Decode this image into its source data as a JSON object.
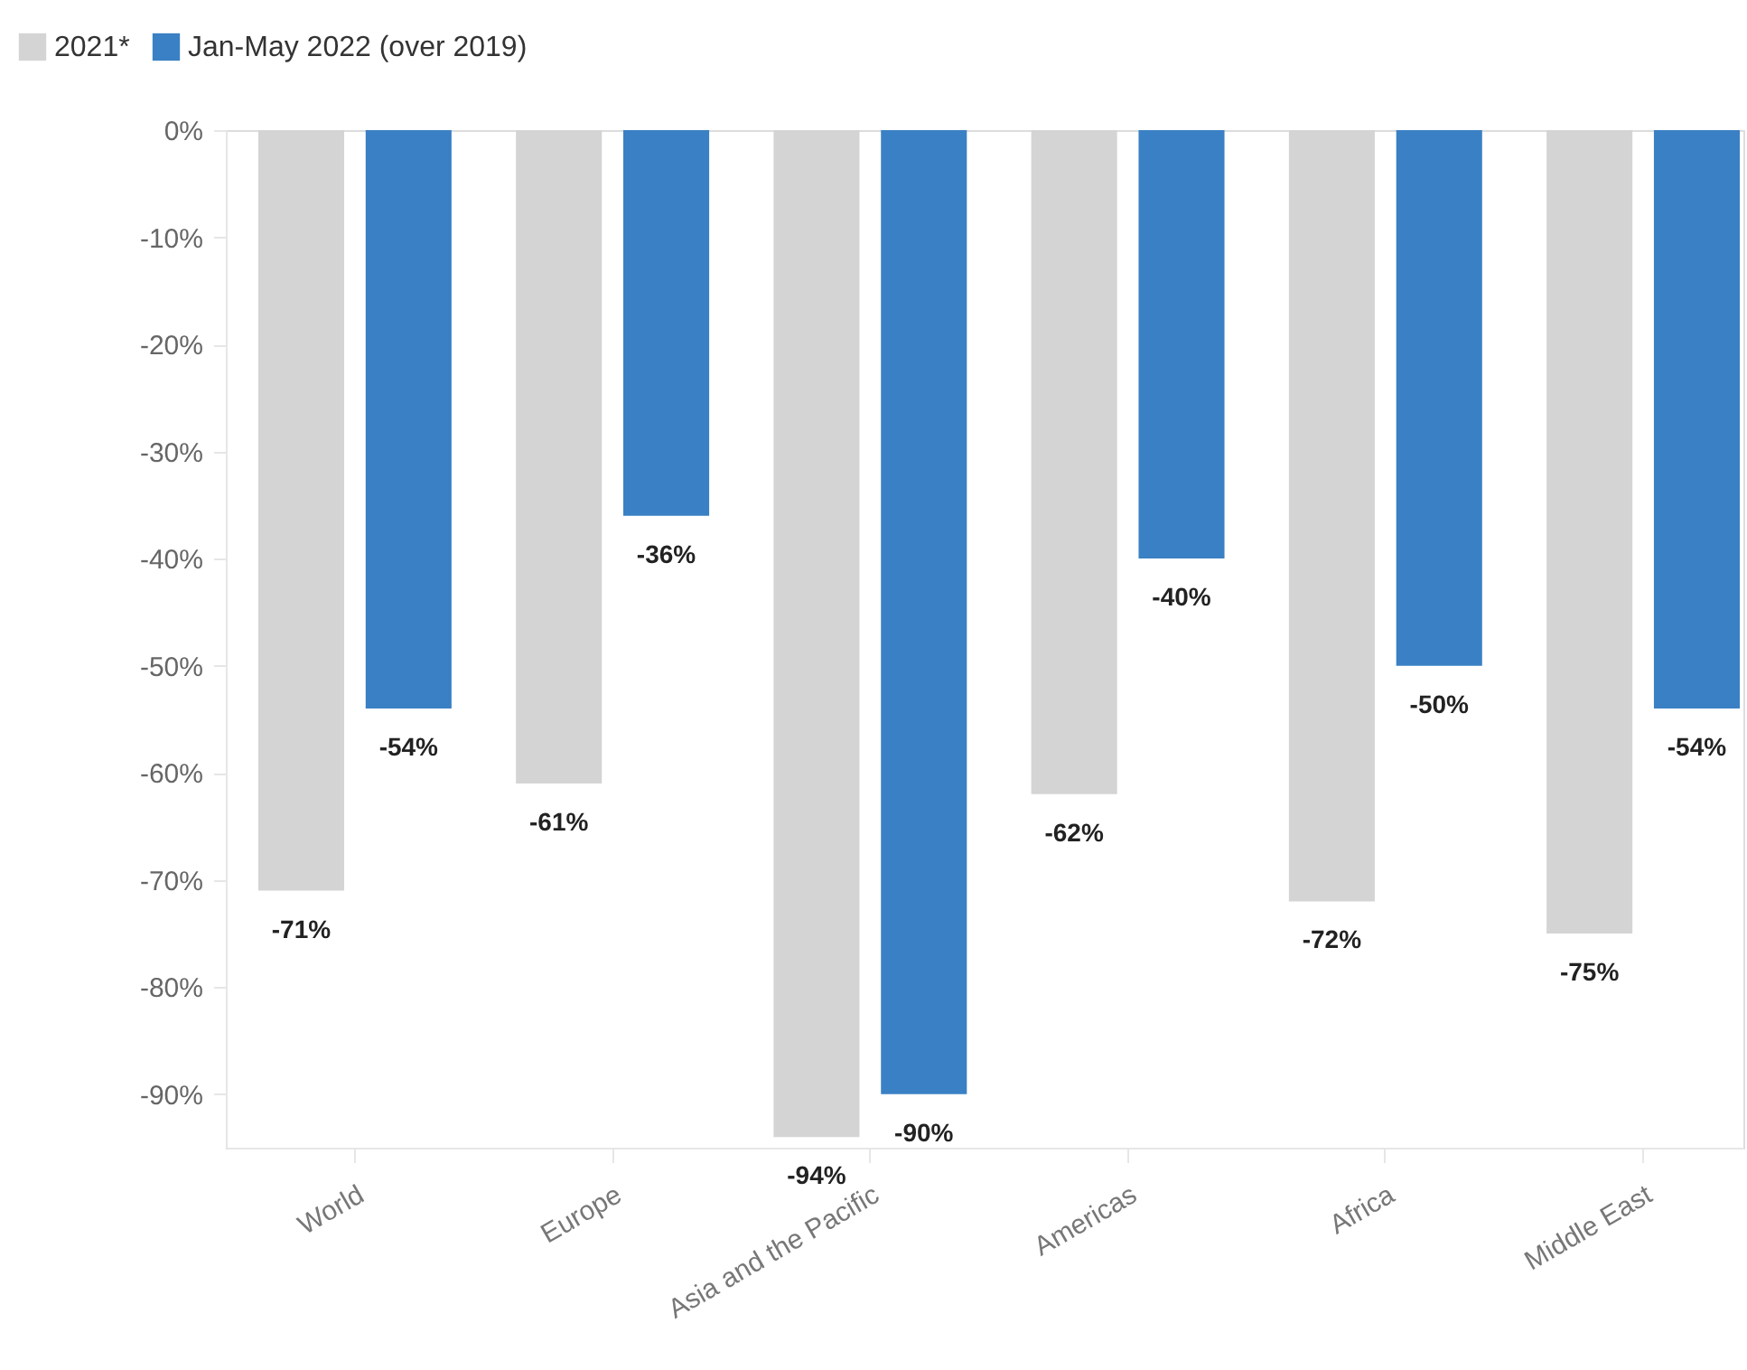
{
  "chart_data": {
    "type": "bar",
    "categories": [
      "World",
      "Europe",
      "Asia and the Pacific",
      "Americas",
      "Africa",
      "Middle East"
    ],
    "series": [
      {
        "name": "2021*",
        "color": "#d4d4d4",
        "values": [
          -71,
          -61,
          -94,
          -62,
          -72,
          -75
        ],
        "value_labels": [
          "-71%",
          "-61%",
          "-94%",
          "-62%",
          "-72%",
          "-75%"
        ]
      },
      {
        "name": "Jan-May 2022 (over 2019)",
        "color": "#3a80c4",
        "values": [
          -54,
          -36,
          -90,
          -40,
          -50,
          -54
        ],
        "value_labels": [
          "-54%",
          "-36%",
          "-90%",
          "-40%",
          "-50%",
          "-54%"
        ]
      }
    ],
    "ylim": [
      -95,
      0
    ],
    "yticks": [
      {
        "value": 0,
        "label": "0%"
      },
      {
        "value": -10,
        "label": "-10%"
      },
      {
        "value": -20,
        "label": "-20%"
      },
      {
        "value": -30,
        "label": "-30%"
      },
      {
        "value": -40,
        "label": "-40%"
      },
      {
        "value": -50,
        "label": "-50%"
      },
      {
        "value": -60,
        "label": "-60%"
      },
      {
        "value": -70,
        "label": "-70%"
      },
      {
        "value": -80,
        "label": "-80%"
      },
      {
        "value": -90,
        "label": "-90%"
      }
    ],
    "grid": false,
    "legend": "top left"
  }
}
